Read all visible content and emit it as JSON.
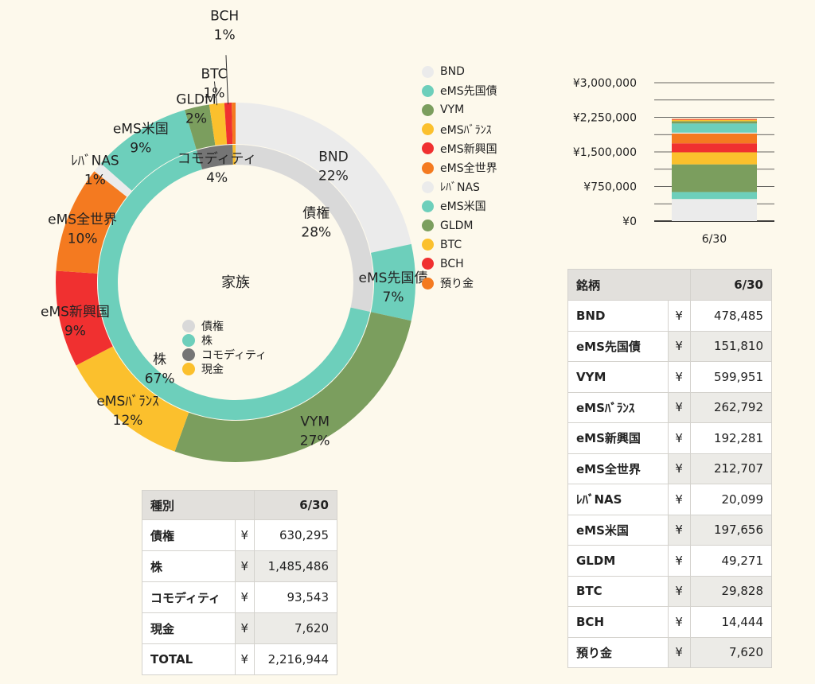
{
  "chart_data": [
    {
      "type": "pie",
      "variant": "nested-donut",
      "center_label": "家族",
      "inner_ring": [
        {
          "name": "債権",
          "value": 630295,
          "pct": "28%",
          "color": "#d9d9d9"
        },
        {
          "name": "株",
          "value": 1485486,
          "pct": "67%",
          "color": "#6dcfbb"
        },
        {
          "name": "コモディティ",
          "value": 93543,
          "pct": "4%",
          "color": "#757575"
        },
        {
          "name": "現金",
          "value": 7620,
          "pct": "",
          "color": "#fbc02d"
        }
      ],
      "outer_ring": [
        {
          "name": "BND",
          "value": 478485,
          "pct": "22%",
          "color": "#ebebeb"
        },
        {
          "name": "eMS先国債",
          "value": 151810,
          "pct": "7%",
          "color": "#6dcfbb"
        },
        {
          "name": "VYM",
          "value": 599951,
          "pct": "27%",
          "color": "#7b9e5e"
        },
        {
          "name": "eMSﾊﾞﾗﾝｽ",
          "value": 262792,
          "pct": "12%",
          "color": "#fbc02d"
        },
        {
          "name": "eMS新興国",
          "value": 192281,
          "pct": "9%",
          "color": "#f03030"
        },
        {
          "name": "eMS全世界",
          "value": 212707,
          "pct": "10%",
          "color": "#f47a20"
        },
        {
          "name": "ﾚﾊﾞNAS",
          "value": 20099,
          "pct": "1%",
          "color": "#ebebeb"
        },
        {
          "name": "eMS米国",
          "value": 197656,
          "pct": "9%",
          "color": "#6dcfbb"
        },
        {
          "name": "GLDM",
          "value": 49271,
          "pct": "2%",
          "color": "#7b9e5e"
        },
        {
          "name": "BTC",
          "value": 29828,
          "pct": "1%",
          "color": "#fbc02d"
        },
        {
          "name": "BCH",
          "value": 14444,
          "pct": "1%",
          "color": "#f03030"
        },
        {
          "name": "預り金",
          "value": 7620,
          "pct": "",
          "color": "#f47a20"
        }
      ],
      "legend_placement": "right"
    },
    {
      "type": "bar",
      "stacked": true,
      "categories": [
        "6/30"
      ],
      "ylim": [
        0,
        3000000
      ],
      "yticks": [
        "¥3,000,000",
        "¥2,250,000",
        "¥1,500,000",
        "¥750,000",
        "¥0"
      ],
      "ytick_values": [
        3000000,
        2250000,
        1500000,
        750000,
        0
      ],
      "series": [
        {
          "name": "BND",
          "value": 478485,
          "color": "#ebebeb"
        },
        {
          "name": "eMS先国債",
          "value": 151810,
          "color": "#6dcfbb"
        },
        {
          "name": "VYM",
          "value": 599951,
          "color": "#7b9e5e"
        },
        {
          "name": "eMSﾊﾞﾗﾝｽ",
          "value": 262792,
          "color": "#fbc02d"
        },
        {
          "name": "eMS新興国",
          "value": 192281,
          "color": "#f03030"
        },
        {
          "name": "eMS全世界",
          "value": 212707,
          "color": "#f47a20"
        },
        {
          "name": "ﾚﾊﾞNAS",
          "value": 20099,
          "color": "#ebebeb"
        },
        {
          "name": "eMS米国",
          "value": 197656,
          "color": "#6dcfbb"
        },
        {
          "name": "GLDM",
          "value": 49271,
          "color": "#7b9e5e"
        },
        {
          "name": "BTC",
          "value": 29828,
          "color": "#fbc02d"
        },
        {
          "name": "BCH",
          "value": 14444,
          "color": "#f03030"
        },
        {
          "name": "預り金",
          "value": 7620,
          "color": "#f47a20"
        }
      ]
    }
  ],
  "type_table": {
    "header_label": "種別",
    "header_date": "6/30",
    "currency": "¥",
    "rows": [
      {
        "name": "債権",
        "value": "630,295"
      },
      {
        "name": "株",
        "value": "1,485,486"
      },
      {
        "name": "コモディティ",
        "value": "93,543"
      },
      {
        "name": "現金",
        "value": "7,620"
      },
      {
        "name": "TOTAL",
        "value": "2,216,944"
      }
    ]
  },
  "brand_table": {
    "header_label": "銘柄",
    "header_date": "6/30",
    "currency": "¥",
    "rows": [
      {
        "name": "BND",
        "value": "478,485"
      },
      {
        "name": "eMS先国債",
        "value": "151,810"
      },
      {
        "name": "VYM",
        "value": "599,951"
      },
      {
        "name": "eMSﾊﾞﾗﾝｽ",
        "value": "262,792"
      },
      {
        "name": "eMS新興国",
        "value": "192,281"
      },
      {
        "name": "eMS全世界",
        "value": "212,707"
      },
      {
        "name": "ﾚﾊﾞNAS",
        "value": "20,099"
      },
      {
        "name": "eMS米国",
        "value": "197,656"
      },
      {
        "name": "GLDM",
        "value": "49,271"
      },
      {
        "name": "BTC",
        "value": "29,828"
      },
      {
        "name": "BCH",
        "value": "14,444"
      },
      {
        "name": "預り金",
        "value": "7,620"
      }
    ]
  }
}
